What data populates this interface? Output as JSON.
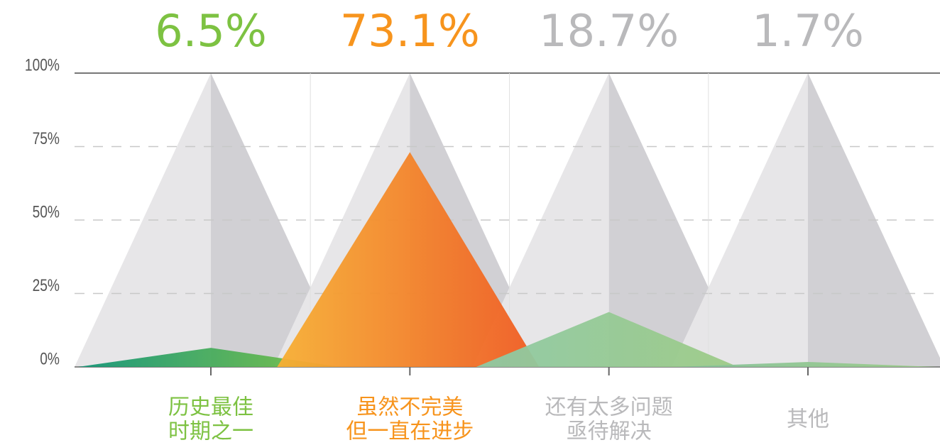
{
  "chart_data": {
    "type": "peak",
    "categories": [
      [
        "历史最佳",
        "时期之一"
      ],
      [
        "虽然不完美",
        "但一直在进步"
      ],
      [
        "还有太多问题",
        "亟待解决"
      ],
      [
        "其他"
      ]
    ],
    "values": [
      6.5,
      73.1,
      18.7,
      1.7
    ],
    "value_labels": [
      "6.5%",
      "73.1%",
      "18.7%",
      "1.7%"
    ],
    "colors": [
      [
        "#129577",
        "#7cc243"
      ],
      [
        "#f7b034",
        "#f05a22"
      ],
      [
        "#8ec9a4",
        "#9dcb86"
      ],
      [
        "#86c29a",
        "#9ccb8a"
      ]
    ],
    "label_colors": [
      "#7dc242",
      "#f7941d",
      "#b9b9bb",
      "#b9b9bb"
    ],
    "ylim": [
      0,
      100
    ],
    "yticks": [
      {
        "value": 0,
        "label": "0%"
      },
      {
        "value": 25,
        "label": "25%"
      },
      {
        "value": 50,
        "label": "50%"
      },
      {
        "value": 75,
        "label": "75%"
      },
      {
        "value": 100,
        "label": "100%"
      }
    ],
    "grid": true
  }
}
